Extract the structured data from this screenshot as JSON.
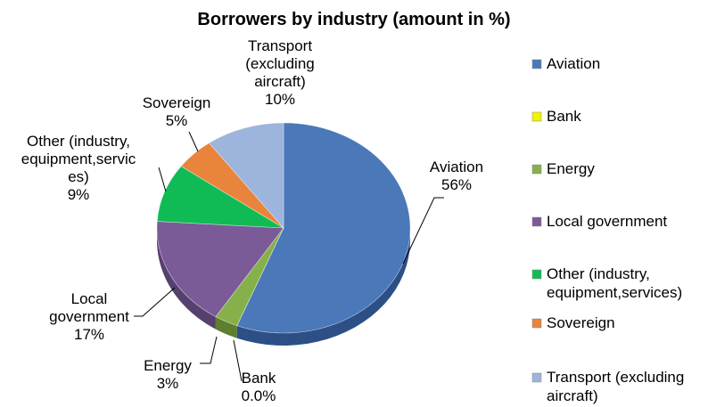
{
  "chart_data": {
    "type": "pie",
    "title": "Borrowers by industry (amount in %)",
    "start_angle_deg": 0,
    "direction": "clockwise",
    "slices": [
      {
        "key": "aviation",
        "legend": [
          "Aviation"
        ],
        "label": [
          "Aviation",
          "56%"
        ],
        "value": 56.0,
        "color": "#4A78B8",
        "side": "#2C4F86"
      },
      {
        "key": "bank",
        "legend": [
          "Bank"
        ],
        "label": [
          "Bank",
          "0.0%"
        ],
        "value": 0.0,
        "color": "#F2F200",
        "side": "#B5B500"
      },
      {
        "key": "energy",
        "legend": [
          "Energy"
        ],
        "label": [
          "Energy",
          "3%"
        ],
        "value": 3.0,
        "color": "#86B04A",
        "side": "#5E7E30"
      },
      {
        "key": "local_government",
        "legend": [
          "Local government"
        ],
        "label": [
          "Local",
          "government",
          "17%"
        ],
        "value": 17.0,
        "color": "#7B5A98",
        "side": "#56406E"
      },
      {
        "key": "other",
        "legend": [
          "Other (industry,",
          "equipment,services)"
        ],
        "label": [
          "Other (industry,",
          "equipment,servic",
          "es)",
          "9%"
        ],
        "value": 9.0,
        "color": "#10BB55",
        "side": "#0A8A3D"
      },
      {
        "key": "sovereign",
        "legend": [
          "Sovereign"
        ],
        "label": [
          "Sovereign",
          "5%"
        ],
        "value": 5.0,
        "color": "#E8843C",
        "side": "#B45F24"
      },
      {
        "key": "transport",
        "legend": [
          "Transport (excluding",
          "aircraft)"
        ],
        "label": [
          "Transport",
          "(excluding",
          "aircraft)",
          "10%"
        ],
        "value": 10.0,
        "color": "#9DB4DC",
        "side": "#6F88B2"
      }
    ]
  }
}
